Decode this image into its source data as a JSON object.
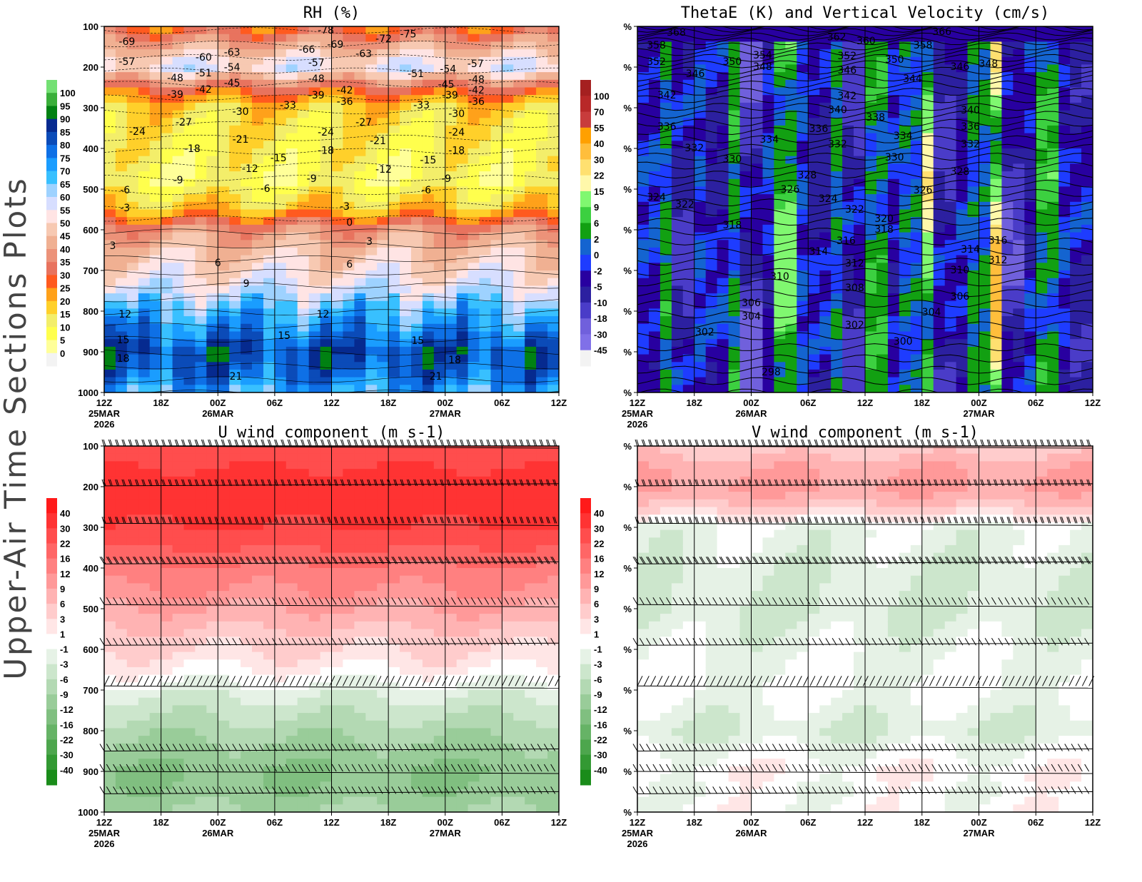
{
  "page": {
    "side_title": "Upper-Air Time Sections Plots"
  },
  "axes": {
    "x_ticks": [
      "12Z",
      "18Z",
      "00Z",
      "06Z",
      "12Z",
      "18Z",
      "00Z",
      "06Z",
      "12Z"
    ],
    "x_tick_hours": [
      0,
      6,
      12,
      18,
      24,
      30,
      36,
      42,
      48
    ],
    "x_date_labels": [
      {
        "hour": 0,
        "lines": [
          "25MAR",
          "2026"
        ]
      },
      {
        "hour": 12,
        "lines": [
          "26MAR"
        ]
      },
      {
        "hour": 36,
        "lines": [
          "27MAR"
        ]
      }
    ],
    "pressure_ticks": [
      "100",
      "200",
      "300",
      "400",
      "500",
      "600",
      "700",
      "800",
      "900",
      "1000"
    ],
    "pressure_values": [
      100,
      200,
      300,
      400,
      500,
      600,
      700,
      800,
      900,
      1000
    ],
    "right_y_tick_label": "%",
    "ylim": [
      100,
      1000
    ],
    "xlim_hours": [
      0,
      48
    ]
  },
  "chart_data": [
    {
      "id": "rh",
      "type": "heatmap",
      "title": "RH (%)",
      "colorbar": {
        "labels": [
          "100",
          "95",
          "90",
          "85",
          "80",
          "75",
          "70",
          "65",
          "60",
          "55",
          "50",
          "45",
          "40",
          "35",
          "30",
          "25",
          "20",
          "15",
          "10",
          "5",
          "0"
        ],
        "colors": [
          "#73e073",
          "#3aaf3a",
          "#018112",
          "#062a8f",
          "#0b4bb8",
          "#0e70e6",
          "#1a9dff",
          "#38c0ff",
          "#9ed2ff",
          "#d7deff",
          "#ffe4e4",
          "#f7c9b2",
          "#f0b092",
          "#ec9279",
          "#e8735e",
          "#ff5a1f",
          "#ffa11a",
          "#ffd02a",
          "#f3ee6a",
          "#ffff4d",
          "#ffff99",
          "#f3f3f3"
        ]
      },
      "levels": [
        0,
        5,
        10,
        15,
        20,
        25,
        30,
        35,
        40,
        45,
        50,
        55,
        60,
        65,
        70,
        75,
        80,
        85,
        90,
        95,
        100
      ],
      "profile": [
        [
          100,
          27
        ],
        [
          150,
          42
        ],
        [
          200,
          56
        ],
        [
          250,
          32
        ],
        [
          300,
          16
        ],
        [
          400,
          11
        ],
        [
          480,
          8
        ],
        [
          550,
          19
        ],
        [
          600,
          38
        ],
        [
          650,
          46
        ],
        [
          700,
          51
        ],
        [
          750,
          58
        ],
        [
          800,
          68
        ],
        [
          850,
          75
        ],
        [
          900,
          84
        ],
        [
          950,
          79
        ],
        [
          1000,
          70
        ]
      ],
      "contour_labels": [
        [
          2.4,
          137,
          "-69"
        ],
        [
          2.4,
          186,
          "-57"
        ],
        [
          10.5,
          175,
          "-60"
        ],
        [
          13.5,
          163,
          "-63"
        ],
        [
          13.5,
          200,
          "-54"
        ],
        [
          10.5,
          214,
          "-51"
        ],
        [
          7.5,
          226,
          "-48"
        ],
        [
          10.5,
          254,
          "-42"
        ],
        [
          7.5,
          267,
          "-39"
        ],
        [
          13.5,
          239,
          "-45"
        ],
        [
          23.4,
          109,
          "-78"
        ],
        [
          24.4,
          144,
          "-69"
        ],
        [
          21.4,
          156,
          "-66"
        ],
        [
          22.4,
          189,
          "-57"
        ],
        [
          27.4,
          167,
          "-63"
        ],
        [
          29.5,
          130,
          "-72"
        ],
        [
          32.1,
          118,
          "-75"
        ],
        [
          32.9,
          216,
          "-51"
        ],
        [
          36.3,
          204,
          "-54"
        ],
        [
          39.2,
          191,
          "-57"
        ],
        [
          39.3,
          230,
          "-48"
        ],
        [
          36.1,
          242,
          "-45"
        ],
        [
          39.3,
          256,
          "-42"
        ],
        [
          36.5,
          268,
          "-39"
        ],
        [
          39.3,
          284,
          "-36"
        ],
        [
          22.4,
          228,
          "-48"
        ],
        [
          25.4,
          256,
          "-42"
        ],
        [
          25.4,
          284,
          "-36"
        ],
        [
          22.4,
          268,
          "-39"
        ],
        [
          33.5,
          293,
          "-33"
        ],
        [
          19.4,
          293,
          "-33"
        ],
        [
          14.4,
          309,
          "-30"
        ],
        [
          37.2,
          314,
          "-30"
        ],
        [
          3.5,
          358,
          "-24"
        ],
        [
          8.4,
          335,
          "-27"
        ],
        [
          27.4,
          335,
          "-27"
        ],
        [
          23.4,
          360,
          "-24"
        ],
        [
          37.2,
          360,
          "-24"
        ],
        [
          14.4,
          377,
          "-21"
        ],
        [
          28.9,
          381,
          "-21"
        ],
        [
          9.3,
          400,
          "-18"
        ],
        [
          23.4,
          404,
          "-18"
        ],
        [
          37.2,
          404,
          "-18"
        ],
        [
          18.4,
          423,
          "-15"
        ],
        [
          34.2,
          428,
          "-15"
        ],
        [
          15.4,
          449,
          "-12"
        ],
        [
          29.5,
          451,
          "-12"
        ],
        [
          7.8,
          477,
          "-9"
        ],
        [
          21.9,
          474,
          "-9"
        ],
        [
          36.1,
          474,
          "-9"
        ],
        [
          2.2,
          502,
          "-6"
        ],
        [
          17,
          498,
          "-6"
        ],
        [
          34,
          502,
          "-6"
        ],
        [
          2.2,
          546,
          "-3"
        ],
        [
          25.4,
          542,
          "-3"
        ],
        [
          25.9,
          582,
          "0"
        ],
        [
          0.9,
          639,
          "3"
        ],
        [
          28,
          628,
          "3"
        ],
        [
          12,
          681,
          "6"
        ],
        [
          25.9,
          684,
          "6"
        ],
        [
          15,
          732,
          "9"
        ],
        [
          2.2,
          807,
          "12"
        ],
        [
          23.1,
          807,
          "12"
        ],
        [
          19,
          860,
          "15"
        ],
        [
          2,
          870,
          "15"
        ],
        [
          33.1,
          872,
          "15"
        ],
        [
          2,
          916,
          "18"
        ],
        [
          37,
          919,
          "18"
        ],
        [
          13.9,
          960,
          "21"
        ],
        [
          35,
          960,
          "21"
        ]
      ]
    },
    {
      "id": "thetae",
      "type": "heatmap",
      "title": "ThetaE (K) and Vertical Velocity (cm/s)",
      "colorbar": {
        "labels": [
          "100",
          "70",
          "55",
          "40",
          "30",
          "22",
          "15",
          "9",
          "6",
          "2",
          "0",
          "-2",
          "-5",
          "-10",
          "-18",
          "-30",
          "-45"
        ],
        "colors": [
          "#a52020",
          "#b82828",
          "#c83c3c",
          "#ffa000",
          "#ffbe3c",
          "#ffe070",
          "#fff8aa",
          "#80f870",
          "#3cd040",
          "#12a012",
          "#1464d0",
          "#1e3cff",
          "#2800a0",
          "#2c20a0",
          "#4a3cc8",
          "#7060dc",
          "#8070e8",
          "#f3f3f3"
        ]
      },
      "levels": [
        -45,
        -30,
        -18,
        -10,
        -5,
        -2,
        0,
        2,
        6,
        9,
        15,
        22,
        30,
        40,
        55,
        70,
        100
      ],
      "column_values": [
        -3,
        4,
        -12,
        -1,
        -6,
        5,
        -20,
        -4,
        12,
        -1,
        -7,
        3,
        -14,
        6,
        -4,
        1,
        20,
        -12,
        -5,
        3,
        35,
        -18,
        -6,
        7,
        -3,
        -9
      ],
      "contour_labels": [
        [
          4.1,
          114,
          "368"
        ],
        [
          2,
          146,
          "358"
        ],
        [
          2,
          186,
          "352"
        ],
        [
          10,
          186,
          "350"
        ],
        [
          13.2,
          170,
          "354"
        ],
        [
          13.2,
          198,
          "348"
        ],
        [
          21,
          125,
          "362"
        ],
        [
          24.1,
          135,
          "360"
        ],
        [
          22.1,
          172,
          "352"
        ],
        [
          22.1,
          207,
          "346"
        ],
        [
          27.1,
          181,
          "350"
        ],
        [
          32.1,
          112,
          "366"
        ],
        [
          30.1,
          146,
          "358"
        ],
        [
          29,
          228,
          "344"
        ],
        [
          6.1,
          216,
          "346"
        ],
        [
          34,
          198,
          "346"
        ],
        [
          37,
          191,
          "348"
        ],
        [
          3.1,
          268,
          "342"
        ],
        [
          22.1,
          270,
          "342"
        ],
        [
          21.1,
          304,
          "340"
        ],
        [
          35.1,
          305,
          "340"
        ],
        [
          25.1,
          323,
          "338"
        ],
        [
          35.1,
          346,
          "336"
        ],
        [
          3.1,
          346,
          "336"
        ],
        [
          19.1,
          351,
          "336"
        ],
        [
          28,
          368,
          "334"
        ],
        [
          13.9,
          377,
          "334"
        ],
        [
          6,
          398,
          "332"
        ],
        [
          21.1,
          389,
          "332"
        ],
        [
          35.1,
          389,
          "332"
        ],
        [
          10,
          425,
          "330"
        ],
        [
          27.1,
          421,
          "330"
        ],
        [
          17.9,
          465,
          "328"
        ],
        [
          34,
          456,
          "328"
        ],
        [
          16.1,
          500,
          "326"
        ],
        [
          30.1,
          502,
          "326"
        ],
        [
          2,
          519,
          "324"
        ],
        [
          20.1,
          523,
          "324"
        ],
        [
          5,
          537,
          "322"
        ],
        [
          22.9,
          549,
          "322"
        ],
        [
          26,
          572,
          "320"
        ],
        [
          26,
          598,
          "318"
        ],
        [
          10,
          588,
          "318"
        ],
        [
          22,
          626,
          "316"
        ],
        [
          38,
          625,
          "316"
        ],
        [
          19.1,
          653,
          "314"
        ],
        [
          35.1,
          647,
          "314"
        ],
        [
          22.9,
          682,
          "312"
        ],
        [
          38,
          674,
          "312"
        ],
        [
          15,
          714,
          "310"
        ],
        [
          34,
          698,
          "310"
        ],
        [
          22.9,
          742,
          "308"
        ],
        [
          34,
          763,
          "306"
        ],
        [
          12,
          779,
          "306"
        ],
        [
          12,
          812,
          "304"
        ],
        [
          31,
          802,
          "304"
        ],
        [
          22.9,
          833,
          "302"
        ],
        [
          7.1,
          851,
          "302"
        ],
        [
          28,
          874,
          "300"
        ],
        [
          14.1,
          949,
          "298"
        ]
      ]
    },
    {
      "id": "u",
      "type": "heatmap",
      "title": "U wind component (m s-1)",
      "colorbar": {
        "labels_pos": [
          "40",
          "30",
          "22",
          "16",
          "12",
          "9",
          "6",
          "3",
          "1"
        ],
        "labels_neg": [
          "-1",
          "-3",
          "-6",
          "-9",
          "-12",
          "-16",
          "-22",
          "-30",
          "-40"
        ],
        "colors": [
          "#ff1a1a",
          "#ff3333",
          "#ff4d4d",
          "#ff6666",
          "#ff8080",
          "#ff9999",
          "#ffb3b3",
          "#ffcccc",
          "#ffe6e6",
          "#ffffff",
          "#e6f2e6",
          "#cce6cc",
          "#b3d9b3",
          "#99cc99",
          "#80bf80",
          "#66b366",
          "#4da64d",
          "#339933",
          "#1a8c1a"
        ]
      },
      "levels": [
        -40,
        -30,
        -22,
        -16,
        -12,
        -9,
        -6,
        -3,
        -1,
        1,
        3,
        6,
        9,
        12,
        16,
        22,
        30,
        40
      ],
      "profile": [
        [
          100,
          22
        ],
        [
          150,
          30
        ],
        [
          200,
          33
        ],
        [
          250,
          32
        ],
        [
          300,
          30
        ],
        [
          350,
          22
        ],
        [
          400,
          15
        ],
        [
          500,
          9
        ],
        [
          580,
          4
        ],
        [
          640,
          1.5
        ],
        [
          700,
          -2
        ],
        [
          750,
          -5
        ],
        [
          800,
          -8
        ],
        [
          850,
          -10
        ],
        [
          900,
          -12
        ],
        [
          950,
          -11
        ],
        [
          1000,
          -9
        ]
      ],
      "barb_levels": [
        100,
        198,
        290,
        390,
        490,
        590,
        690,
        850,
        900,
        955
      ]
    },
    {
      "id": "v",
      "type": "heatmap",
      "title": "V wind component (m s-1)",
      "colorbar": {
        "labels_pos": [
          "40",
          "30",
          "22",
          "16",
          "12",
          "9",
          "6",
          "3",
          "1"
        ],
        "labels_neg": [
          "-1",
          "-3",
          "-6",
          "-9",
          "-12",
          "-16",
          "-22",
          "-30",
          "-40"
        ],
        "colors": [
          "#ff1a1a",
          "#ff3333",
          "#ff4d4d",
          "#ff6666",
          "#ff8080",
          "#ff9999",
          "#ffb3b3",
          "#ffcccc",
          "#ffe6e6",
          "#ffffff",
          "#e6f2e6",
          "#cce6cc",
          "#b3d9b3",
          "#99cc99",
          "#80bf80",
          "#66b366",
          "#4da64d",
          "#339933",
          "#1a8c1a"
        ]
      },
      "levels": [
        -40,
        -30,
        -22,
        -16,
        -12,
        -9,
        -6,
        -3,
        -1,
        1,
        3,
        6,
        9,
        12,
        16,
        22,
        30,
        40
      ],
      "profile": [
        [
          100,
          4
        ],
        [
          150,
          8
        ],
        [
          200,
          10
        ],
        [
          250,
          5
        ],
        [
          300,
          -1.5
        ],
        [
          400,
          -2.5
        ],
        [
          500,
          -3
        ],
        [
          600,
          -1.5
        ],
        [
          700,
          -0.5
        ],
        [
          800,
          -3
        ],
        [
          850,
          -1
        ],
        [
          900,
          0.5
        ],
        [
          950,
          -0.5
        ],
        [
          1000,
          0
        ]
      ],
      "barb_levels": [
        100,
        198,
        290,
        390,
        490,
        590,
        690,
        850,
        900,
        955
      ]
    }
  ]
}
